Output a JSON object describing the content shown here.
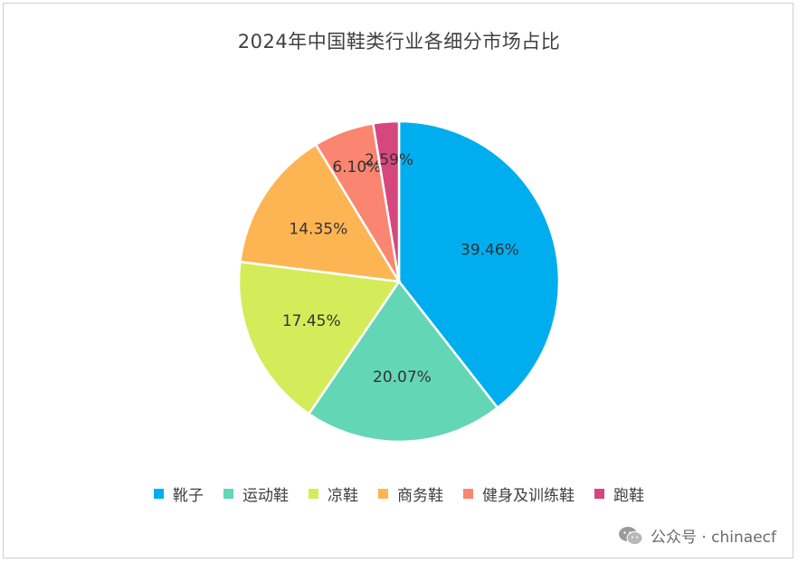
{
  "chart_data": {
    "type": "pie",
    "title": "2024年中国鞋类行业各细分市场占比",
    "categories": [
      "靴子",
      "运动鞋",
      "凉鞋",
      "商务鞋",
      "健身及训练鞋",
      "跑鞋"
    ],
    "values": [
      39.46,
      20.07,
      17.45,
      14.35,
      6.1,
      2.59
    ],
    "labels": [
      "39.46%",
      "20.07%",
      "17.45%",
      "14.35%",
      "6.10%",
      "2.59%"
    ],
    "colors": [
      "#00AEEF",
      "#63D6B6",
      "#D4EC5A",
      "#FDB553",
      "#FA8570",
      "#D6477E"
    ],
    "start_angle_deg": 0,
    "direction": "clockwise",
    "legend_position": "bottom"
  },
  "watermark": {
    "text": "公众号 · chinaecf",
    "icon": "wechat-icon"
  }
}
